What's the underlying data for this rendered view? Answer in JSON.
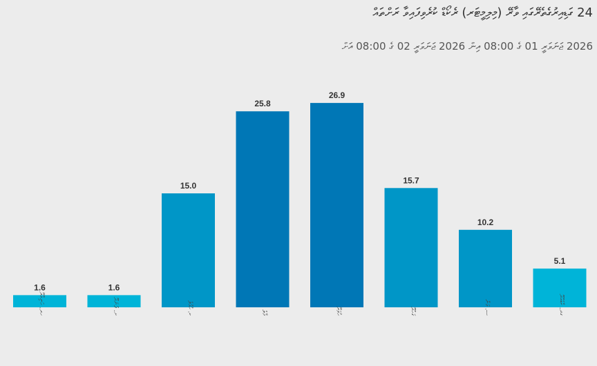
{
  "header": {
    "title": "24 ގަޑިއިރުގެތެރޭގައި ވާރޭ (މިލިމީޓަރ) ރެކޯޑް ކުރެވިފައިވާ ރަށްތައް",
    "subtitle": "2026 ޖަނަވަރީ 01 ގެ 08:00 އިން 2026 ޖަނަވަރީ 02 ގެ 08:00 އަށް"
  },
  "colors": {
    "low": "#00b4d8",
    "mid": "#0096c7",
    "high": "#0077b6",
    "background": "#ececec"
  },
  "chart_data": {
    "type": "bar",
    "title": "24 ގަޑިއިރުގެތެރޭގައި ވާރޭ (މިލިމީޓަރ) ރެކޯޑް ކުރެވިފައިވާ ރަށްތައް",
    "subtitle": "2026 ޖަނަވަރީ 01 ގެ 08:00 އިން 2026 ޖަނަވަރީ 02 ގެ 08:00 އަށް",
    "categories": [
      "ހދ. ހަނިމާދޫ",
      "ށ. ފުނަދޫ",
      "ކ. ހުޅުލެ",
      "މާލެ",
      "ހުވަދޫ",
      "ގަހުދޫ",
      "ސ. ގަން",
      "ގދ. ކާޑެއްދޫ"
    ],
    "values": [
      1.6,
      1.6,
      15.0,
      25.8,
      26.9,
      15.7,
      10.2,
      5.1
    ],
    "value_labels": [
      "1.6",
      "1.6",
      "15.0",
      "25.8",
      "26.9",
      "15.7",
      "10.2",
      "5.1"
    ],
    "xlabel": "",
    "ylabel": "",
    "ylim": [
      0,
      30
    ],
    "grid": false,
    "legend": "none"
  }
}
